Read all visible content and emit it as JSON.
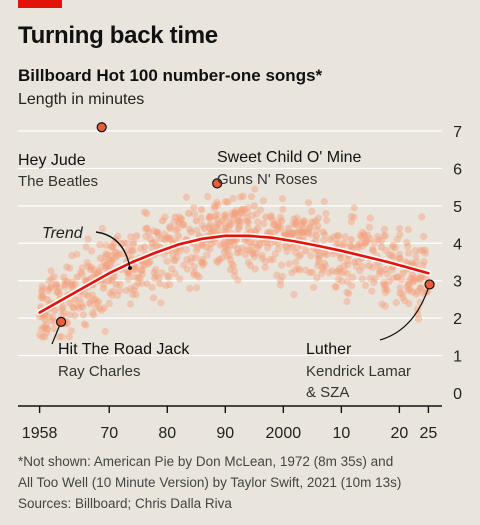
{
  "header": {
    "title": "Turning back time",
    "subtitle": "Billboard Hot 100 number-one songs*",
    "units": "Length in minutes"
  },
  "footnote": {
    "lines": [
      "*Not shown: American Pie by Don McLean, 1972 (8m 35s) and",
      "All Too Well (10 Minute Version) by Taylor Swift, 2021 (10m 13s)",
      "Sources: Billboard; Chris Dalla Riva"
    ]
  },
  "colors": {
    "background": "#e9e5dc",
    "dots": "#f4a07c",
    "trend": "#e3120b",
    "highlight": "#e85d3a",
    "grid": "#ffffff",
    "brand": "#e3120b"
  },
  "chart_data": {
    "type": "scatter",
    "xlim": [
      1956,
      2027
    ],
    "ylim": [
      0,
      7
    ],
    "x_tick_labels": [
      "1958",
      "70",
      "80",
      "90",
      "2000",
      "10",
      "20",
      "25"
    ],
    "x_tick_values": [
      1958,
      1970,
      1980,
      1990,
      2000,
      2010,
      2020,
      2025
    ],
    "y_tick_labels": [
      "0",
      "1",
      "2",
      "3",
      "4",
      "5",
      "6",
      "7"
    ],
    "y_tick_values": [
      0,
      1,
      2,
      3,
      4,
      5,
      6,
      7
    ],
    "trend_label": "Trend",
    "trend": {
      "x": [
        1958,
        1962,
        1966,
        1970,
        1974,
        1978,
        1982,
        1986,
        1990,
        1994,
        1998,
        2002,
        2006,
        2010,
        2014,
        2018,
        2022,
        2025
      ],
      "y": [
        2.15,
        2.5,
        2.85,
        3.2,
        3.5,
        3.75,
        3.97,
        4.12,
        4.2,
        4.2,
        4.15,
        4.05,
        3.93,
        3.8,
        3.65,
        3.5,
        3.33,
        3.2
      ]
    },
    "highlights": [
      {
        "name": "Hey Jude",
        "artist": "The Beatles",
        "x": 1968.7,
        "y": 7.1
      },
      {
        "name": "Sweet Child O' Mine",
        "artist": "Guns N' Roses",
        "x": 1988.6,
        "y": 5.6
      },
      {
        "name": "Hit The Road Jack",
        "artist": "Ray Charles",
        "x": 1961.7,
        "y": 1.9
      },
      {
        "name": "Luther",
        "artist": "Kendrick Lamar",
        "artist_line2": "& SZA",
        "x": 2025.2,
        "y": 2.9
      }
    ],
    "points": {
      "x": [
        1958.2,
        1958.5,
        1958.9,
        1959.3,
        1959.7,
        1960.1,
        1960.6,
        1961.0,
        1961.5,
        1962.0,
        1962.4,
        1962.8,
        1963.2,
        1963.7,
        1964.1,
        1964.5,
        1965.0,
        1965.4,
        1965.9,
        1966.3,
        1966.8,
        1967.2,
        1967.6,
        1968.1,
        1968.5,
        1969.0,
        1969.4,
        1969.9,
        1970.3,
        1970.8,
        1971.2,
        1971.7,
        1972.1,
        1972.5,
        1973.0,
        1973.4,
        1973.9,
        1974.3,
        1974.7,
        1975.2,
        1975.6,
        1976.1,
        1976.5,
        1977.0,
        1977.4,
        1977.8,
        1978.3,
        1978.7,
        1979.2,
        1979.6,
        1980.1,
        1980.5,
        1981.0,
        1981.4,
        1981.9,
        1982.3,
        1982.8,
        1983.2,
        1983.7,
        1984.1,
        1984.6,
        1985.0,
        1985.5,
        1985.9,
        1986.4,
        1986.8,
        1987.3,
        1987.7,
        1988.2,
        1988.6,
        1989.1,
        1989.5,
        1990.0,
        1990.4,
        1990.9,
        1991.4,
        1991.8,
        1992.3,
        1992.8,
        1993.3,
        1993.8,
        1994.4,
        1995.0,
        1995.6,
        1996.3,
        1997.0,
        1997.7,
        1998.4,
        1999.1,
        1999.7,
        2000.3,
        2000.9,
        2001.5,
        2002.1,
        2002.7,
        2003.3,
        2003.9,
        2004.5,
        2005.1,
        2005.7,
        2006.3,
        2006.9,
        2007.5,
        2008.1,
        2008.7,
        2009.3,
        2009.9,
        2010.5,
        2011.1,
        2011.7,
        2012.3,
        2012.9,
        2013.5,
        2014.1,
        2014.8,
        2015.5,
        2016.2,
        2016.9,
        2017.6,
        2018.3,
        2019.0,
        2019.6,
        2020.1,
        2020.6,
        2021.1,
        2021.6,
        2022.1,
        2022.6,
        2023.1,
        2023.6,
        2024.1,
        2024.6
      ],
      "y": [
        2.3,
        2.6,
        2.1,
        2.5,
        2.8,
        2.4,
        2.2,
        2.7,
        2.5,
        2.3,
        2.9,
        2.6,
        2.4,
        2.8,
        2.5,
        3.1,
        2.7,
        2.3,
        3.0,
        2.6,
        3.3,
        2.9,
        2.5,
        3.2,
        3.6,
        2.8,
        3.4,
        3.0,
        3.5,
        3.1,
        2.9,
        3.7,
        3.3,
        4.0,
        3.5,
        3.2,
        3.8,
        3.4,
        4.2,
        3.6,
        3.3,
        3.9,
        4.4,
        3.5,
        4.0,
        3.7,
        4.3,
        3.9,
        4.6,
        4.1,
        3.8,
        4.4,
        4.0,
        4.7,
        4.2,
        3.9,
        4.5,
        4.1,
        4.8,
        4.3,
        4.0,
        4.6,
        4.2,
        4.9,
        4.4,
        4.1,
        4.7,
        4.3,
        5.0,
        4.5,
        4.2,
        4.6,
        4.3,
        5.1,
        4.5,
        4.1,
        4.8,
        4.4,
        4.9,
        4.2,
        4.6,
        4.3,
        5.0,
        4.4,
        4.1,
        4.7,
        4.3,
        4.5,
        4.0,
        4.6,
        4.2,
        4.4,
        3.9,
        4.5,
        4.1,
        4.3,
        3.8,
        4.4,
        4.0,
        4.2,
        3.9,
        4.3,
        3.7,
        4.1,
        3.8,
        4.2,
        3.6,
        4.0,
        3.7,
        4.1,
        3.5,
        3.9,
        3.6,
        4.0,
        3.4,
        3.8,
        3.5,
        3.9,
        3.3,
        3.7,
        3.4,
        3.1,
        3.6,
        3.2,
        3.5,
        2.9,
        3.4,
        3.0,
        3.3,
        2.8,
        3.2,
        2.7
      ]
    }
  }
}
